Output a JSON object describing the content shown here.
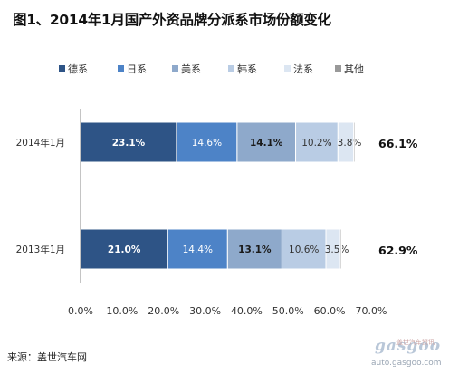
{
  "chart_data": {
    "type": "bar",
    "orientation": "horizontal",
    "stacked": true,
    "title": "图1、2014年1月国产外资品牌分派系市场份额变化",
    "categories": [
      "2014年1月",
      "2013年1月"
    ],
    "series": [
      {
        "name": "德系",
        "values": [
          23.1,
          21.0
        ],
        "color": "#2e5486",
        "labels": [
          "23.1%",
          "21.0%"
        ],
        "label_color": "#ffffff",
        "label_bold": true
      },
      {
        "name": "日系",
        "values": [
          14.6,
          14.4
        ],
        "color": "#4d83c7",
        "labels": [
          "14.6%",
          "14.4%"
        ],
        "label_color": "#ffffff",
        "label_bold": false
      },
      {
        "name": "美系",
        "values": [
          14.1,
          13.1
        ],
        "color": "#8ea9cb",
        "labels": [
          "14.1%",
          "13.1%"
        ],
        "label_color": "#1a1a1a",
        "label_bold": true
      },
      {
        "name": "韩系",
        "values": [
          10.2,
          10.6
        ],
        "color": "#b9cce4",
        "labels": [
          "10.2%",
          "10.6%"
        ],
        "label_color": "#333333",
        "label_bold": false
      },
      {
        "name": "法系",
        "values": [
          3.8,
          3.5
        ],
        "color": "#dce6f2",
        "labels": [
          "3.8%",
          "3.5%"
        ],
        "label_color": "#333333",
        "label_bold": false
      },
      {
        "name": "其他",
        "values": [
          0.3,
          0.3
        ],
        "color": "#999999",
        "labels": [
          "",
          ""
        ],
        "label_color": "#333333",
        "label_bold": false
      }
    ],
    "totals": [
      "66.1%",
      "62.9%"
    ],
    "xlim": [
      0,
      70
    ],
    "xticks": [
      "0.0%",
      "10.0%",
      "20.0%",
      "30.0%",
      "40.0%",
      "50.0%",
      "60.0%",
      "70.0%"
    ],
    "legend_position": "top",
    "grid": false
  },
  "source_note": "来源：盖世汽车网",
  "watermark": {
    "logo": "gasgoo",
    "cn": "盖世汽车资讯",
    "url": "auto.gasgoo.com"
  }
}
